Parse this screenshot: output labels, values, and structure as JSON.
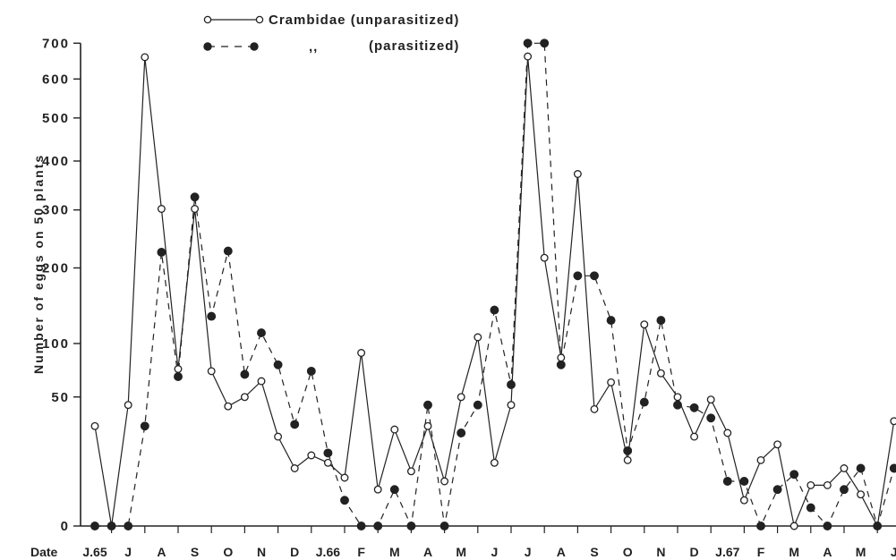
{
  "chart_data": {
    "type": "line",
    "title": "",
    "xlabel": "Date",
    "ylabel": "Number of eggs on 50 plants",
    "y_scale": "square-root",
    "ylim": [
      0,
      700
    ],
    "y_ticks": [
      0,
      50,
      100,
      200,
      300,
      400,
      500,
      600,
      700
    ],
    "y_tick_labels": [
      "0",
      "50",
      "100",
      "200",
      "300",
      "400",
      "500",
      "600",
      "700"
    ],
    "x_month_labels": [
      "J.65",
      "J",
      "A",
      "S",
      "O",
      "N",
      "D",
      "J.66",
      "F",
      "M",
      "A",
      "M",
      "J",
      "J",
      "A",
      "S",
      "O",
      "N",
      "D",
      "J.67",
      "F",
      "M",
      "A",
      "M",
      "J"
    ],
    "legend": {
      "placement": "top-center",
      "entries": [
        "Crambidae (unparasitized)",
        "(parasitized)"
      ],
      "ditto_mark": ",,"
    },
    "series": [
      {
        "name": "Crambidae (unparasitized)",
        "style": "solid-open-circle",
        "points": [
          [
            0,
            30
          ],
          [
            0.5,
            0
          ],
          [
            1,
            44
          ],
          [
            1.5,
            660
          ],
          [
            2,
            302
          ],
          [
            2.5,
            74
          ],
          [
            3,
            302
          ],
          [
            3.5,
            72
          ],
          [
            4,
            43
          ],
          [
            4.5,
            50
          ],
          [
            5,
            63
          ],
          [
            5.5,
            24
          ],
          [
            6,
            10
          ],
          [
            6.5,
            15
          ],
          [
            7,
            12
          ],
          [
            7.5,
            7
          ],
          [
            8,
            90
          ],
          [
            8.5,
            4
          ],
          [
            9,
            28
          ],
          [
            9.5,
            9
          ],
          [
            10,
            30
          ],
          [
            10.5,
            6
          ],
          [
            11,
            50
          ],
          [
            11.5,
            107
          ],
          [
            12,
            12
          ],
          [
            12.5,
            44
          ],
          [
            13,
            662
          ],
          [
            13.5,
            216
          ],
          [
            14,
            85
          ],
          [
            14.5,
            372
          ],
          [
            15,
            41
          ],
          [
            15.5,
            62
          ],
          [
            16,
            13
          ],
          [
            16.5,
            122
          ],
          [
            17,
            70
          ],
          [
            17.5,
            50
          ],
          [
            18,
            24
          ],
          [
            18.5,
            48
          ],
          [
            19,
            26
          ],
          [
            19.5,
            2
          ],
          [
            20,
            13
          ],
          [
            20.5,
            20
          ],
          [
            21,
            0
          ],
          [
            21.5,
            5
          ],
          [
            22,
            5
          ],
          [
            22.5,
            10
          ],
          [
            23,
            3
          ],
          [
            23.5,
            0
          ],
          [
            24,
            33
          ]
        ]
      },
      {
        "name": "(parasitized)",
        "style": "dashed-filled-circle",
        "points": [
          [
            0,
            0
          ],
          [
            0.5,
            0
          ],
          [
            1,
            0
          ],
          [
            1.5,
            30
          ],
          [
            2,
            225
          ],
          [
            2.5,
            67
          ],
          [
            3,
            325
          ],
          [
            3.5,
            132
          ],
          [
            4,
            227
          ],
          [
            4.5,
            69
          ],
          [
            5,
            112
          ],
          [
            5.5,
            78
          ],
          [
            6,
            31
          ],
          [
            6.5,
            72
          ],
          [
            7,
            16
          ],
          [
            7.5,
            2
          ],
          [
            8,
            0
          ],
          [
            8.5,
            0
          ],
          [
            9,
            4
          ],
          [
            9.5,
            0
          ],
          [
            10,
            44
          ],
          [
            10.5,
            0
          ],
          [
            11,
            26
          ],
          [
            11.5,
            44
          ],
          [
            12,
            140
          ],
          [
            12.5,
            60
          ],
          [
            13,
            700
          ],
          [
            13.5,
            700
          ],
          [
            14,
            78
          ],
          [
            14.5,
            188
          ],
          [
            15,
            188
          ],
          [
            15.5,
            127
          ],
          [
            16,
            17
          ],
          [
            16.5,
            46
          ],
          [
            17,
            127
          ],
          [
            17.5,
            44
          ],
          [
            18,
            42
          ],
          [
            18.5,
            35
          ],
          [
            19,
            6
          ],
          [
            19.5,
            6
          ],
          [
            20,
            0
          ],
          [
            20.5,
            4
          ],
          [
            21,
            8
          ],
          [
            21.5,
            1
          ],
          [
            22,
            0
          ],
          [
            22.5,
            4
          ],
          [
            23,
            10
          ],
          [
            23.5,
            0
          ],
          [
            24,
            10
          ]
        ]
      }
    ]
  }
}
